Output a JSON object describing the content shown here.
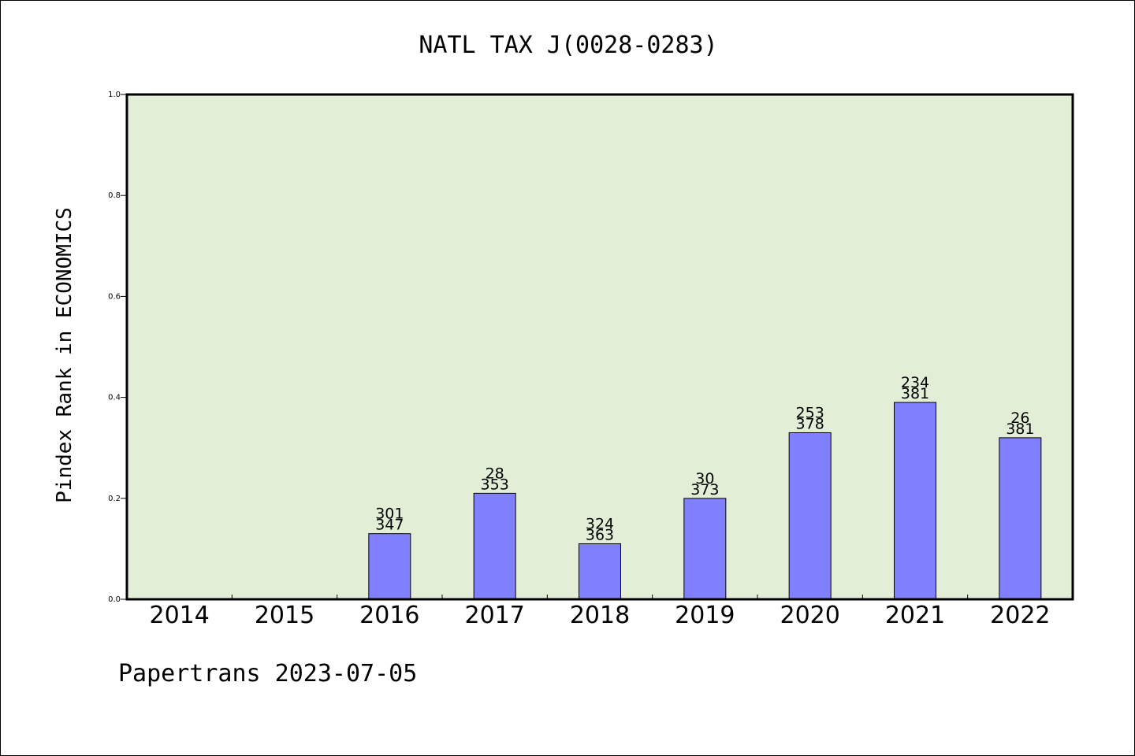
{
  "chart_data": {
    "type": "bar",
    "title": "NATL TAX J(0028-0283)",
    "ylabel": "Pindex Rank in ECONOMICS",
    "xlabel": "",
    "footer": "Papertrans 2023-07-05",
    "categories": [
      "2014",
      "2015",
      "2016",
      "2017",
      "2018",
      "2019",
      "2020",
      "2021",
      "2022"
    ],
    "values": [
      null,
      null,
      0.13,
      0.21,
      0.11,
      0.2,
      0.33,
      0.39,
      0.32
    ],
    "rank_labels": [
      "",
      "",
      "301",
      "28",
      "324",
      "30",
      "253",
      "234",
      "26"
    ],
    "total_labels": [
      "",
      "",
      "347",
      "353",
      "363",
      "373",
      "378",
      "381",
      "381"
    ],
    "ylim": [
      0,
      1.0
    ],
    "yticks": [
      "0.0",
      "0.2",
      "0.4",
      "0.6",
      "0.8",
      "1.0"
    ],
    "grid": false,
    "colors": {
      "plot_background": "#e2efd6",
      "bar": "#8080ff",
      "bar_edge": "#000000"
    }
  }
}
